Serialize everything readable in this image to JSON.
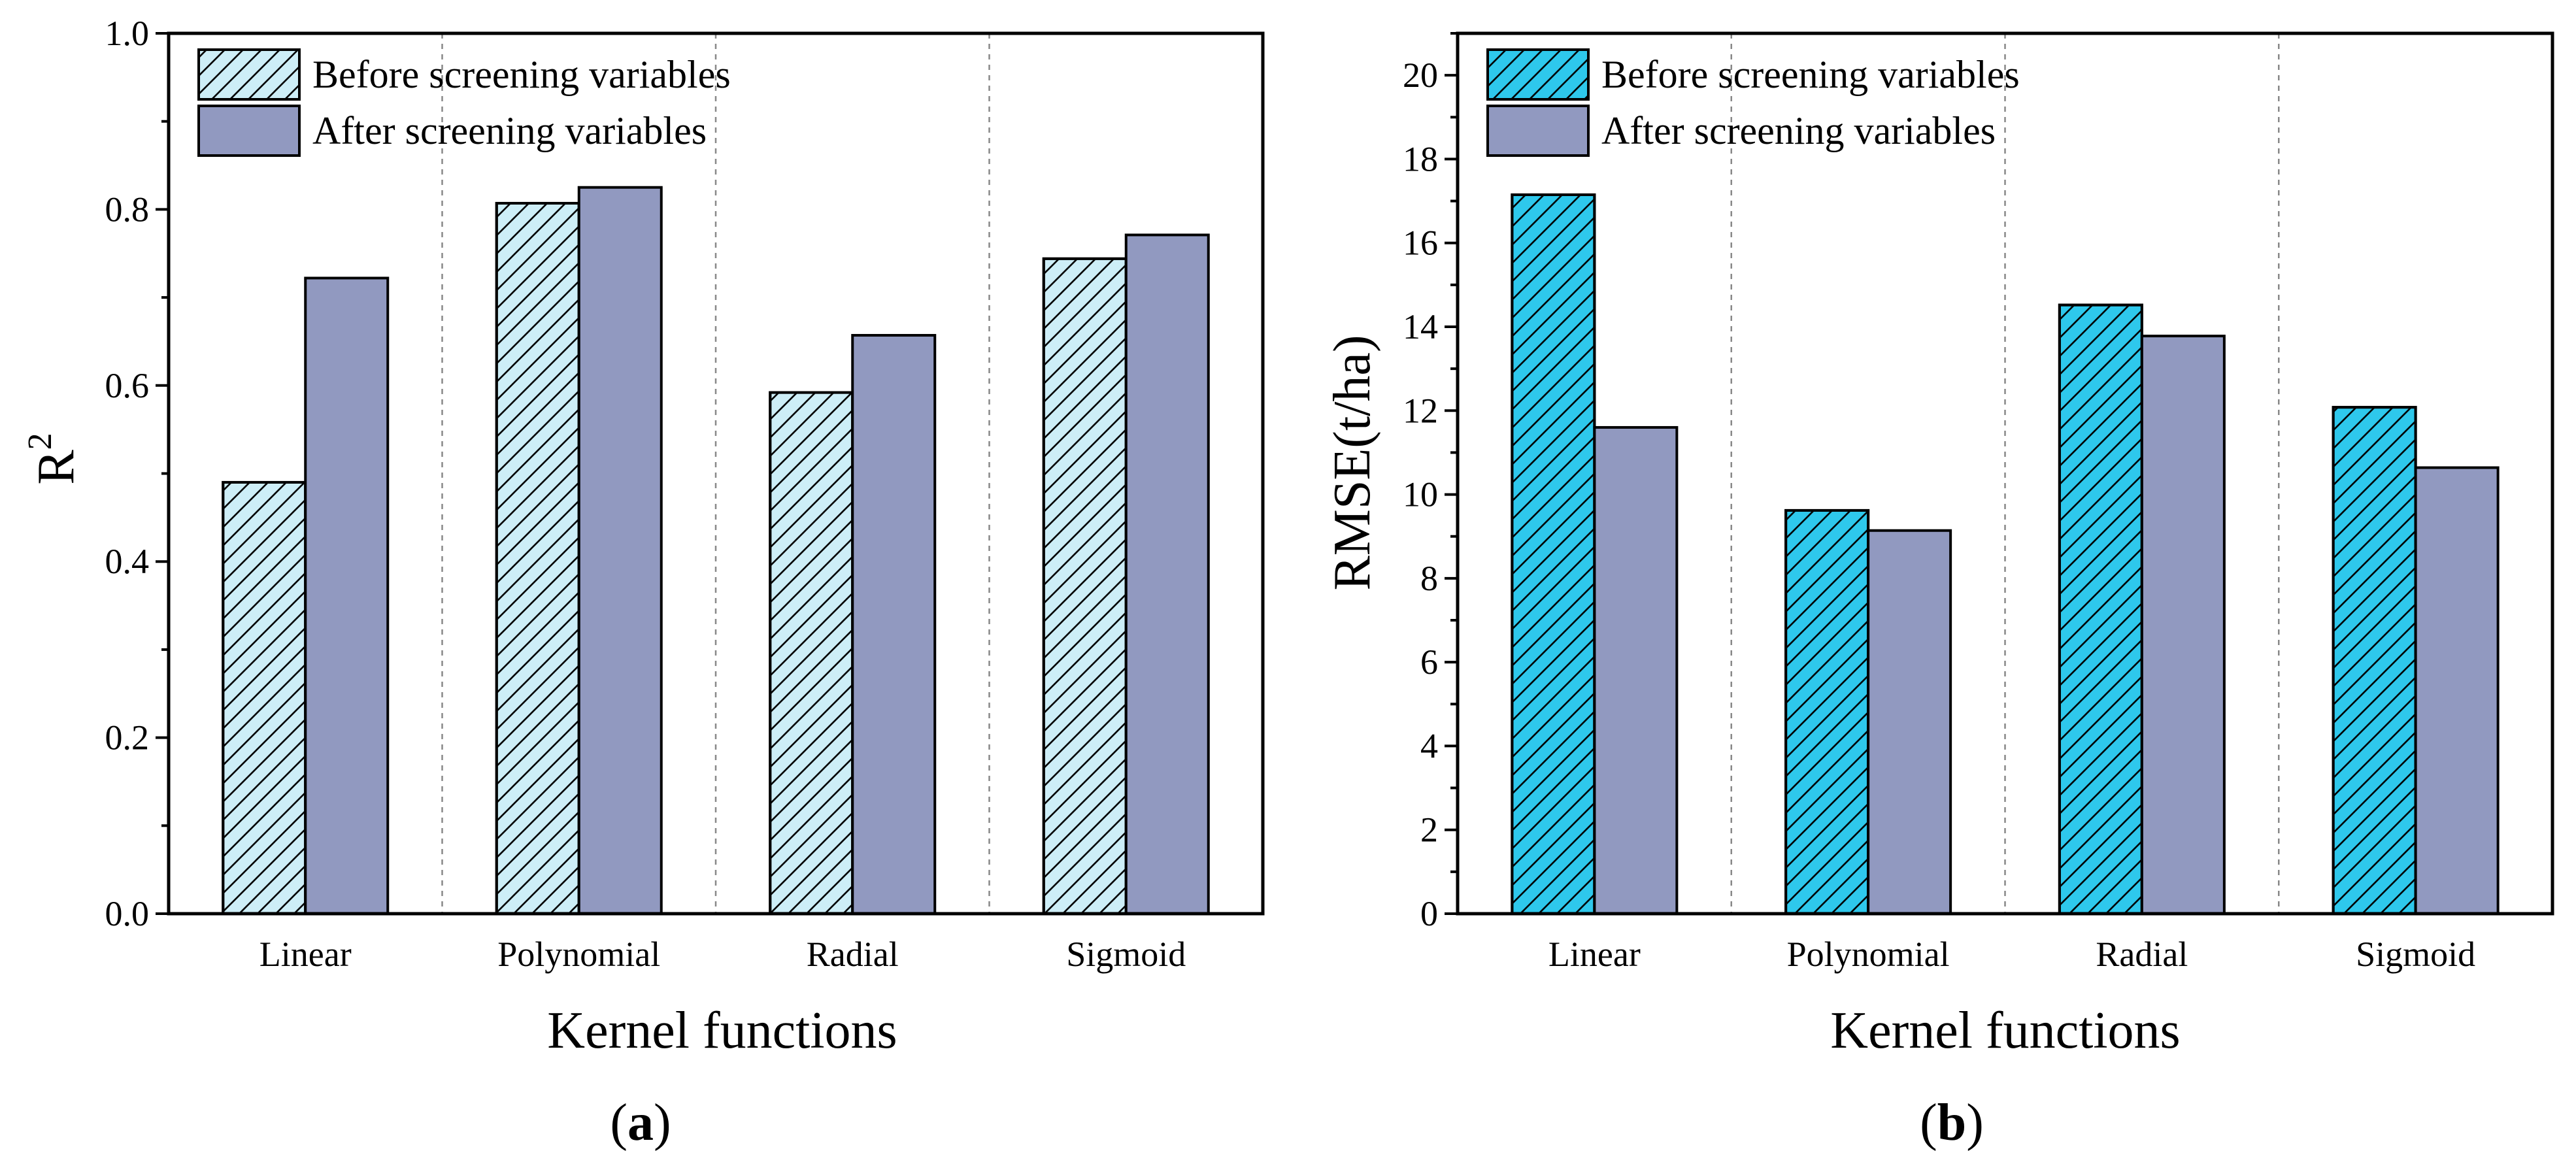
{
  "chart_data": [
    {
      "type": "bar",
      "panel": "a",
      "caption_open": "(",
      "caption_letter": "a",
      "caption_close": ")",
      "title": "",
      "xlabel": "Kernel functions",
      "ylabel_main": "R",
      "ylabel_sup": "2",
      "ylim": [
        0,
        1
      ],
      "yticks": [
        "0.0",
        "0.2",
        "0.4",
        "0.6",
        "0.8",
        "1.0"
      ],
      "ytick_values": [
        0,
        0.2,
        0.4,
        0.6,
        0.8,
        1.0
      ],
      "minor_tick_step": 0.1,
      "categories": [
        "Linear",
        "Polynomial",
        "Radial",
        "Sigmoid"
      ],
      "series": [
        {
          "name": "Before screening variables",
          "values": [
            0.49,
            0.807,
            0.592,
            0.744
          ],
          "color": "#cdeef7",
          "hatch": true
        },
        {
          "name": "After screening variables",
          "values": [
            0.722,
            0.825,
            0.657,
            0.771
          ],
          "color": "#9199c0",
          "hatch": false
        }
      ],
      "legend_position": "top-left",
      "grid": false,
      "category_separators": true
    },
    {
      "type": "bar",
      "panel": "b",
      "caption_open": "(",
      "caption_letter": "b",
      "caption_close": ")",
      "title": "",
      "xlabel": "Kernel functions",
      "ylabel_main": "RMSE(t/ha)",
      "ylabel_sup": "",
      "ylim": [
        0,
        21
      ],
      "yticks": [
        "0",
        "2",
        "4",
        "6",
        "8",
        "10",
        "12",
        "14",
        "16",
        "18",
        "20"
      ],
      "ytick_values": [
        0,
        2,
        4,
        6,
        8,
        10,
        12,
        14,
        16,
        18,
        20
      ],
      "minor_tick_step": 1,
      "categories": [
        "Linear",
        "Polynomial",
        "Radial",
        "Sigmoid"
      ],
      "series": [
        {
          "name": "Before screening variables",
          "values": [
            17.15,
            9.62,
            14.52,
            12.08
          ],
          "color": "#2ec8ec",
          "hatch": true
        },
        {
          "name": "After screening variables",
          "values": [
            11.6,
            9.14,
            13.78,
            10.64
          ],
          "color": "#9199c0",
          "hatch": false
        }
      ],
      "legend_position": "top-left",
      "grid": false,
      "category_separators": true
    }
  ]
}
